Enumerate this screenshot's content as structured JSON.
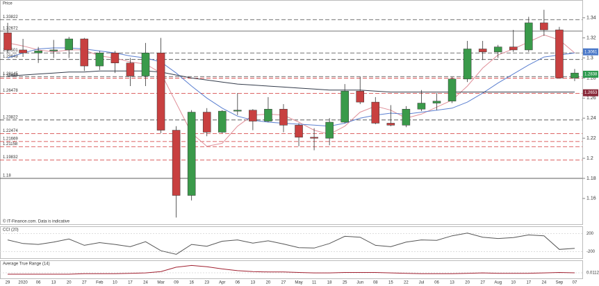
{
  "chart_data": {
    "type": "candlestick",
    "title": "Price",
    "source": "© IT-Finance.com. Data is indicative",
    "categories": [
      "29",
      "2020",
      "06",
      "13",
      "20",
      "27",
      "Feb",
      "10",
      "17",
      "24",
      "Mar",
      "09",
      "16",
      "23",
      "Apr",
      "06",
      "13",
      "20",
      "27",
      "May",
      "11",
      "18",
      "25",
      "Jun",
      "08",
      "15",
      "22",
      "Jul",
      "06",
      "13",
      "20",
      "27",
      "Aug",
      "10",
      "17",
      "24",
      "Sep",
      "07"
    ],
    "open": [
      1.325,
      1.308,
      1.305,
      1.307,
      1.308,
      1.319,
      1.292,
      1.305,
      1.295,
      1.282,
      1.305,
      1.228,
      1.163,
      1.246,
      1.226,
      1.247,
      1.248,
      1.237,
      1.249,
      1.233,
      1.221,
      1.22,
      1.236,
      1.267,
      1.256,
      1.235,
      1.233,
      1.249,
      1.255,
      1.257,
      1.279,
      1.309,
      1.306,
      1.311,
      1.308,
      1.335,
      1.328,
      1.28
    ],
    "high": [
      1.335,
      1.319,
      1.311,
      1.318,
      1.321,
      1.32,
      1.307,
      1.307,
      1.3,
      1.315,
      1.32,
      1.232,
      1.248,
      1.25,
      1.248,
      1.265,
      1.249,
      1.261,
      1.254,
      1.235,
      1.23,
      1.24,
      1.274,
      1.281,
      1.261,
      1.253,
      1.252,
      1.268,
      1.265,
      1.281,
      1.317,
      1.317,
      1.313,
      1.328,
      1.341,
      1.348,
      1.331,
      1.289
    ],
    "low": [
      1.305,
      1.301,
      1.295,
      1.3,
      1.3,
      1.287,
      1.288,
      1.285,
      1.272,
      1.272,
      1.225,
      1.141,
      1.158,
      1.222,
      1.225,
      1.243,
      1.228,
      1.236,
      1.226,
      1.212,
      1.208,
      1.213,
      1.235,
      1.254,
      1.234,
      1.232,
      1.231,
      1.247,
      1.248,
      1.255,
      1.276,
      1.298,
      1.3,
      1.306,
      1.306,
      1.322,
      1.281,
      1.277
    ],
    "close": [
      1.308,
      1.305,
      1.307,
      1.308,
      1.319,
      1.292,
      1.305,
      1.295,
      1.282,
      1.305,
      1.228,
      1.163,
      1.246,
      1.226,
      1.247,
      1.248,
      1.237,
      1.249,
      1.233,
      1.221,
      1.22,
      1.236,
      1.267,
      1.256,
      1.235,
      1.233,
      1.249,
      1.255,
      1.257,
      1.279,
      1.309,
      1.306,
      1.311,
      1.308,
      1.335,
      1.328,
      1.28,
      1.285
    ],
    "up_color": "#3a9a4a",
    "down_color": "#c84040",
    "overlays": [
      {
        "color": "#e0909a",
        "values": [
          1.315,
          1.312,
          1.308,
          1.306,
          1.308,
          1.308,
          1.302,
          1.3,
          1.296,
          1.294,
          1.285,
          1.255,
          1.225,
          1.212,
          1.215,
          1.232,
          1.243,
          1.244,
          1.243,
          1.236,
          1.228,
          1.224,
          1.232,
          1.246,
          1.252,
          1.248,
          1.24,
          1.244,
          1.251,
          1.258,
          1.272,
          1.29,
          1.303,
          1.309,
          1.316,
          1.323,
          1.318,
          1.305
        ]
      },
      {
        "color": "#5a7fd0",
        "values": [
          1.3,
          1.305,
          1.309,
          1.31,
          1.31,
          1.309,
          1.307,
          1.305,
          1.302,
          1.3,
          1.296,
          1.285,
          1.272,
          1.26,
          1.25,
          1.242,
          1.238,
          1.236,
          1.235,
          1.234,
          1.233,
          1.232,
          1.235,
          1.24,
          1.243,
          1.245,
          1.244,
          1.246,
          1.248,
          1.25,
          1.256,
          1.265,
          1.275,
          1.284,
          1.293,
          1.301,
          1.303,
          1.305
        ]
      },
      {
        "color": "#333b4a",
        "values": [
          1.282,
          1.283,
          1.284,
          1.285,
          1.286,
          1.286,
          1.287,
          1.287,
          1.287,
          1.287,
          1.286,
          1.283,
          1.28,
          1.278,
          1.276,
          1.274,
          1.273,
          1.272,
          1.271,
          1.27,
          1.269,
          1.268,
          1.268,
          1.268,
          1.267,
          1.266,
          1.266,
          1.266,
          1.266,
          1.266,
          1.266,
          1.266,
          1.266,
          1.266,
          1.266,
          1.266,
          1.266,
          1.266
        ]
      }
    ],
    "levels": [
      {
        "value": 1.3382,
        "label": "1.33822",
        "color": "#444444",
        "dashed": true
      },
      {
        "value": 1.3267,
        "label": "1.32672",
        "color": "#444444",
        "dashed": false
      },
      {
        "value": 1.305,
        "label": "1.30501",
        "color": "#444444",
        "dashed": true
      },
      {
        "value": 1.2985,
        "label": "1.29849",
        "color": "#444444",
        "dashed": true
      },
      {
        "value": 1.2815,
        "label": "1.28145",
        "color": "#444444",
        "dashed": true
      },
      {
        "value": 1.2798,
        "label": "1.27983",
        "color": "#d03030",
        "dashed": true
      },
      {
        "value": 1.2648,
        "label": "1.26478",
        "color": "#d03030",
        "dashed": true
      },
      {
        "value": 1.2382,
        "label": "1.23822",
        "color": "#444444",
        "dashed": true
      },
      {
        "value": 1.2247,
        "label": "1.22474",
        "color": "#d03030",
        "dashed": true
      },
      {
        "value": 1.2167,
        "label": "1.21669",
        "color": "#d03030",
        "dashed": true
      },
      {
        "value": 1.2116,
        "label": "1.21158",
        "color": "#d03030",
        "dashed": true
      },
      {
        "value": 1.1983,
        "label": "1.19832",
        "color": "#d03030",
        "dashed": true
      },
      {
        "value": 1.18,
        "label": "1.18",
        "color": "#444444",
        "dashed": false
      }
    ],
    "price_labels": [
      {
        "value": 1.3061,
        "label": "1.3061",
        "color": "#4a78c8"
      },
      {
        "value": 1.2838,
        "label": "1.2838",
        "color": "#2e9b4f"
      },
      {
        "value": 1.2653,
        "label": "1.2653",
        "color": "#8a2a3a"
      }
    ],
    "ylim": [
      1.135,
      1.355
    ],
    "yticks": [
      1.16,
      1.18,
      {
        "value": 1.2,
        "label": "1.2"
      },
      1.22,
      1.24,
      1.26,
      1.28,
      {
        "value": 1.3,
        "label": "1.3"
      },
      1.32,
      1.34
    ],
    "cci": {
      "title": "CCI (20)",
      "color": "#555555",
      "ylim": [
        -330,
        330
      ],
      "yticks": [
        200,
        -200
      ],
      "values": [
        60,
        -20,
        -40,
        10,
        80,
        -60,
        0,
        -40,
        -90,
        20,
        -180,
        -260,
        -40,
        -80,
        30,
        60,
        -10,
        40,
        -30,
        -110,
        -120,
        -20,
        140,
        120,
        -60,
        -90,
        10,
        60,
        50,
        150,
        210,
        120,
        90,
        110,
        170,
        150,
        -150,
        -126
      ]
    },
    "atr": {
      "title": "Average True Range (14)",
      "color": "#a02030",
      "ylim": [
        0,
        0.035
      ],
      "yticks": [
        {
          "value": 0.0112,
          "label": "0.0112"
        }
      ],
      "values": [
        0.008,
        0.008,
        0.008,
        0.008,
        0.008,
        0.009,
        0.009,
        0.009,
        0.01,
        0.011,
        0.014,
        0.024,
        0.028,
        0.025,
        0.02,
        0.016,
        0.014,
        0.013,
        0.013,
        0.012,
        0.011,
        0.011,
        0.012,
        0.012,
        0.012,
        0.011,
        0.01,
        0.009,
        0.009,
        0.009,
        0.01,
        0.011,
        0.01,
        0.01,
        0.01,
        0.011,
        0.012,
        0.0112
      ]
    }
  }
}
